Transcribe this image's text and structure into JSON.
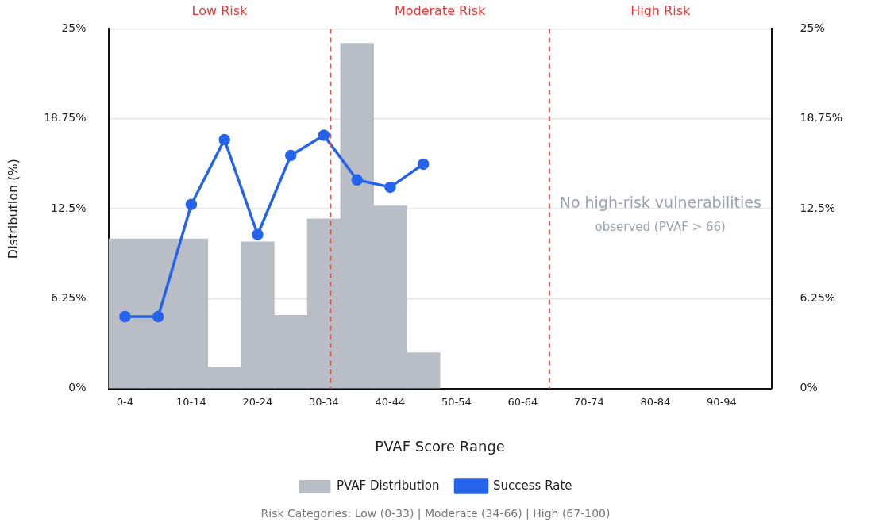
{
  "chart_data": {
    "type": "bar",
    "xlabel": "PVAF Score Range",
    "ylabel": "Distribution (%)",
    "categories": [
      "0-4",
      null,
      "10-14",
      null,
      "20-24",
      null,
      "30-34",
      null,
      "40-44",
      null,
      "50-54",
      null,
      "60-64",
      null,
      "70-74",
      null,
      "80-84",
      null,
      "90-94",
      null
    ],
    "series": [
      {
        "name": "PVAF Distribution",
        "color": "#b9bdc6",
        "values": [
          10.4,
          10.4,
          10.4,
          1.5,
          10.2,
          5.1,
          11.8,
          24,
          12.7,
          2.5,
          null,
          null,
          null,
          null,
          null,
          null,
          null,
          null,
          null,
          null
        ]
      },
      {
        "name": "Success Rate",
        "type": "line",
        "color": "#2563eb",
        "values": [
          5,
          5,
          12.8,
          17.3,
          10.7,
          16.2,
          17.6,
          14.5,
          14,
          15.6,
          null,
          null,
          null,
          null,
          null,
          null,
          null,
          null,
          null,
          null
        ]
      }
    ],
    "ylim": [
      0,
      25
    ],
    "yticks": [
      {
        "value": 0,
        "label": "0%"
      },
      {
        "value": 6.25,
        "label": "6.25%"
      },
      {
        "value": 12.5,
        "label": "12.5%"
      },
      {
        "value": 18.75,
        "label": "18.75%"
      },
      {
        "value": 25,
        "label": "25%"
      }
    ],
    "y2lim": [
      0,
      25
    ],
    "y2ticks": [
      {
        "value": 0,
        "label": "0%"
      },
      {
        "value": 6.25,
        "label": "6.25%"
      },
      {
        "value": 12.5,
        "label": "12.5%"
      },
      {
        "value": 18.75,
        "label": "18.75%"
      },
      {
        "value": 25,
        "label": "25%"
      }
    ],
    "annotations": [
      "Low Risk",
      "Moderate Risk",
      "High Risk",
      "No high-risk vulnerabilities",
      "observed (PVAF > 66)",
      "Risk Categories: Low (0-33) | Moderate (34-66) | High (67-100)"
    ],
    "grid": "y",
    "legend": "bottom",
    "marker": "circle",
    "line_style": "solid"
  }
}
